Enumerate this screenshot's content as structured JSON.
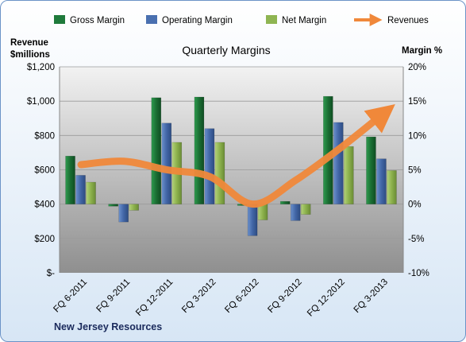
{
  "chart_data": {
    "type": "bar",
    "title": "Quarterly Margins",
    "company": "New Jersey Resources",
    "left_axis": {
      "label": [
        "Revenue",
        "$millions"
      ],
      "range": [
        0,
        1200
      ],
      "ticks": [
        "$-",
        "$200",
        "$400",
        "$600",
        "$800",
        "$1,000",
        "$1,200"
      ]
    },
    "right_axis": {
      "label": "Margin %",
      "range": [
        -10,
        20
      ],
      "ticks": [
        "-10%",
        "-5%",
        "0%",
        "5%",
        "10%",
        "15%",
        "20%"
      ]
    },
    "categories": [
      "FQ 6-2011",
      "FQ 9-2011",
      "FQ 12-2011",
      "FQ 3-2012",
      "FQ 6-2012",
      "FQ 9-2012",
      "FQ 12-2012",
      "FQ 3-2013"
    ],
    "series": [
      {
        "name": "Gross Margin",
        "axis": "right",
        "color": "#1f7a3b",
        "values": [
          7.0,
          -0.3,
          15.5,
          15.6,
          -0.2,
          0.4,
          15.7,
          9.8
        ]
      },
      {
        "name": "Operating Margin",
        "axis": "right",
        "color": "#4a70b0",
        "values": [
          4.2,
          -2.6,
          11.8,
          11.0,
          -4.6,
          -2.4,
          11.9,
          6.6
        ]
      },
      {
        "name": "Net Margin",
        "axis": "right",
        "color": "#8fb552",
        "values": [
          3.2,
          -0.9,
          9.0,
          9.0,
          -2.3,
          -1.5,
          8.4,
          4.9
        ]
      },
      {
        "name": "Revenues",
        "axis": "left",
        "type": "line",
        "color": "#f0883a",
        "values": [
          630,
          650,
          600,
          560,
          400,
          540,
          720,
          920
        ]
      }
    ],
    "grid": true,
    "legend": "top"
  }
}
